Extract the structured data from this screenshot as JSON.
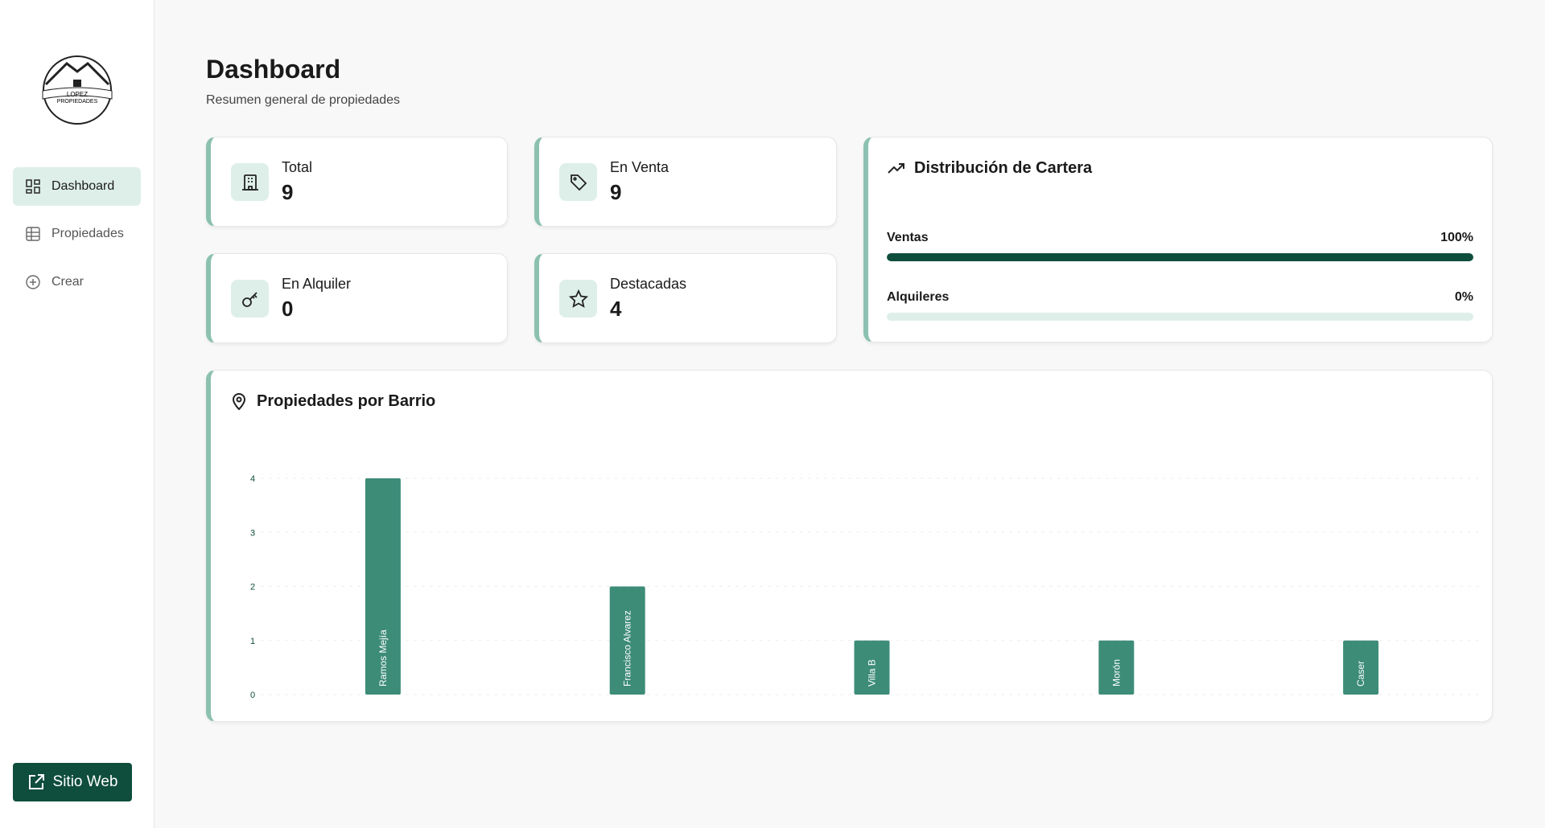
{
  "sidebar": {
    "logo": {
      "line1": "LOPEZ",
      "line2": "PROPIEDADES"
    },
    "nav": [
      "Dashboard",
      "Propiedades",
      "Crear"
    ],
    "button": "Sitio Web"
  },
  "header": {
    "title": "Dashboard",
    "subtitle": "Resumen general de propiedades"
  },
  "stats": [
    {
      "label": "Total",
      "value": 9
    },
    {
      "label": "En Venta",
      "value": 9
    },
    {
      "label": "En Alquiler",
      "value": 0
    },
    {
      "label": "Destacadas",
      "value": 4
    }
  ],
  "distribution": {
    "title": "Distribución de Cartera",
    "range": [
      0,
      100
    ],
    "items": [
      {
        "label": "Ventas",
        "value": 100,
        "value_label": "100%"
      },
      {
        "label": "Alquileres",
        "value": 0,
        "value_label": "0%"
      }
    ]
  },
  "chart_data": {
    "type": "bar",
    "title": "Propiedades por Barrio",
    "categories": [
      "Ramos Mejía",
      "Francisco Alvarez",
      "Villa B",
      "Morón",
      "Caser"
    ],
    "values": [
      4,
      2,
      1,
      1,
      1
    ],
    "color": "#3d8c78",
    "ylim": [
      0,
      4
    ],
    "yticks": [
      0,
      1,
      2,
      3,
      4
    ],
    "grid": true
  }
}
